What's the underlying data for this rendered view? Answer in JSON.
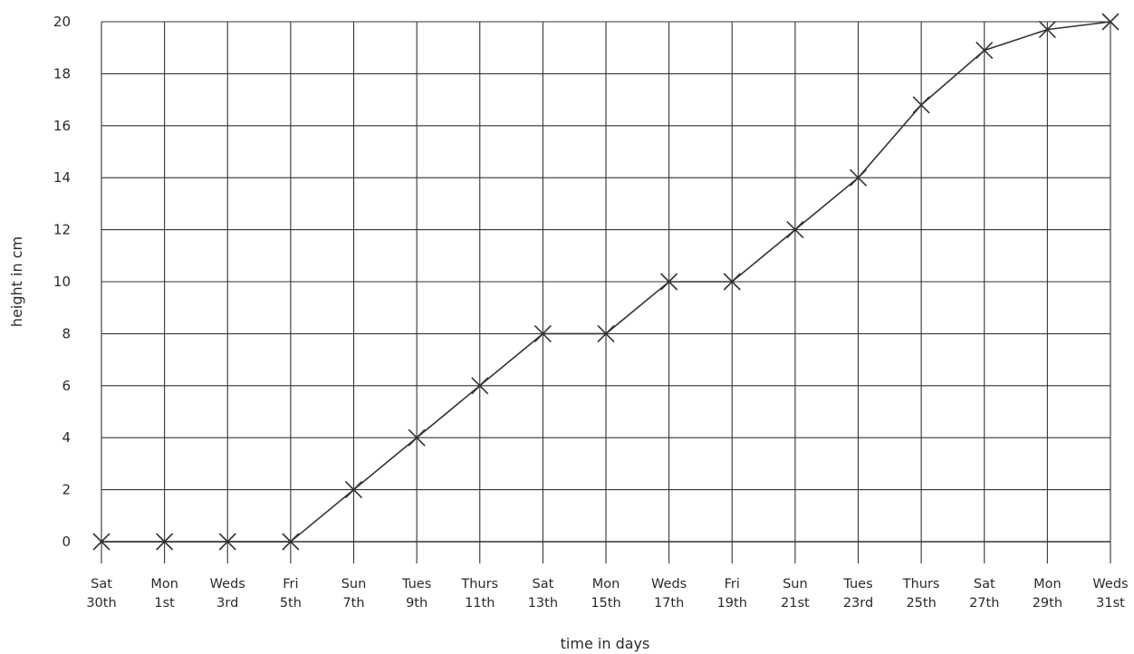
{
  "chart_data": {
    "type": "line",
    "title": "",
    "xlabel": "time in days",
    "ylabel": "height in cm",
    "categories": [
      [
        "Sat",
        "30th"
      ],
      [
        "Mon",
        "1st"
      ],
      [
        "Weds",
        "3rd"
      ],
      [
        "Fri",
        "5th"
      ],
      [
        "Sun",
        "7th"
      ],
      [
        "Tues",
        "9th"
      ],
      [
        "Thurs",
        "11th"
      ],
      [
        "Sat",
        "13th"
      ],
      [
        "Mon",
        "15th"
      ],
      [
        "Weds",
        "17th"
      ],
      [
        "Fri",
        "19th"
      ],
      [
        "Sun",
        "21st"
      ],
      [
        "Tues",
        "23rd"
      ],
      [
        "Thurs",
        "25th"
      ],
      [
        "Sat",
        "27th"
      ],
      [
        "Mon",
        "29th"
      ],
      [
        "Weds",
        "31st"
      ]
    ],
    "series": [
      {
        "values": [
          0,
          0,
          0,
          0,
          2,
          4,
          6,
          8,
          8,
          10,
          10,
          12,
          14,
          16.8,
          18.9,
          19.7,
          20
        ]
      }
    ],
    "marker": "x",
    "ylim": [
      0,
      20
    ],
    "yticks": [
      0,
      2,
      4,
      6,
      8,
      10,
      12,
      14,
      16,
      18,
      20
    ],
    "grid": true,
    "colors": {
      "line": "#333333",
      "grid": "#333333",
      "text": "#2a2a2a"
    }
  }
}
